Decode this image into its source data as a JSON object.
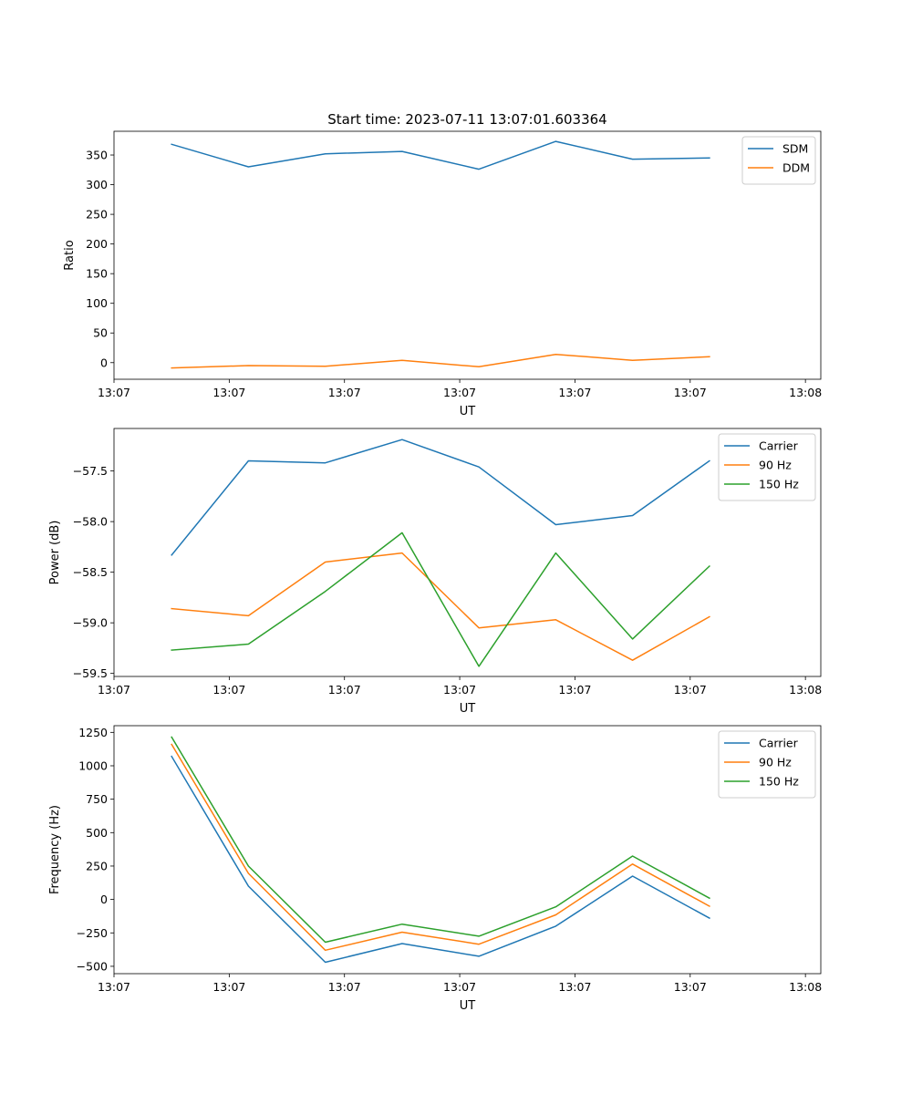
{
  "chart_data": [
    {
      "type": "line",
      "title": "Start time: 2023-07-11 13:07:01.603364",
      "xlabel": "UT",
      "ylabel": "Ratio",
      "xlim": [
        0,
        9.2
      ],
      "ylim": [
        -28,
        390
      ],
      "x": [
        0.75,
        1.75,
        2.75,
        3.75,
        4.75,
        5.75,
        6.75,
        7.75
      ],
      "xticks": [
        0,
        1.5,
        3,
        4.5,
        6,
        7.5,
        9
      ],
      "xtick_labels": [
        "13:07",
        "13:07",
        "13:07",
        "13:07",
        "13:07",
        "13:07",
        "13:08"
      ],
      "yticks": [
        0,
        50,
        100,
        150,
        200,
        250,
        300,
        350
      ],
      "ytick_labels": [
        "0",
        "50",
        "100",
        "150",
        "200",
        "250",
        "300",
        "350"
      ],
      "legend_position": "top-right",
      "series": [
        {
          "name": "SDM",
          "color": "#1f77b4",
          "values": [
            368,
            330,
            352,
            356,
            326,
            373,
            343,
            345
          ]
        },
        {
          "name": "DDM",
          "color": "#ff7f0e",
          "values": [
            -9,
            -5,
            -6,
            4,
            -7,
            14,
            4,
            10
          ]
        }
      ]
    },
    {
      "type": "line",
      "title": "",
      "xlabel": "UT",
      "ylabel": "Power (dB)",
      "xlim": [
        0,
        9.2
      ],
      "ylim": [
        -59.53,
        -57.08
      ],
      "x": [
        0.75,
        1.75,
        2.75,
        3.75,
        4.75,
        5.75,
        6.75,
        7.75
      ],
      "xticks": [
        0,
        1.5,
        3,
        4.5,
        6,
        7.5,
        9
      ],
      "xtick_labels": [
        "13:07",
        "13:07",
        "13:07",
        "13:07",
        "13:07",
        "13:07",
        "13:08"
      ],
      "yticks": [
        -59.5,
        -59.0,
        -58.5,
        -58.0,
        -57.5
      ],
      "ytick_labels": [
        "−59.5",
        "−59.0",
        "−58.5",
        "−58.0",
        "−57.5"
      ],
      "legend_position": "top-right",
      "series": [
        {
          "name": "Carrier",
          "color": "#1f77b4",
          "values": [
            -58.33,
            -57.4,
            -57.42,
            -57.19,
            -57.46,
            -58.03,
            -57.94,
            -57.4
          ]
        },
        {
          "name": "90 Hz",
          "color": "#ff7f0e",
          "values": [
            -58.86,
            -58.93,
            -58.4,
            -58.31,
            -59.05,
            -58.97,
            -59.37,
            -58.94
          ]
        },
        {
          "name": "150 Hz",
          "color": "#2ca02c",
          "values": [
            -59.27,
            -59.21,
            -58.69,
            -58.11,
            -59.43,
            -58.31,
            -59.16,
            -58.44
          ]
        }
      ]
    },
    {
      "type": "line",
      "title": "",
      "xlabel": "UT",
      "ylabel": "Frequency (Hz)",
      "xlim": [
        0,
        9.2
      ],
      "ylim": [
        -555,
        1300
      ],
      "x": [
        0.75,
        1.75,
        2.75,
        3.75,
        4.75,
        5.75,
        6.75,
        7.75
      ],
      "xticks": [
        0,
        1.5,
        3,
        4.5,
        6,
        7.5,
        9
      ],
      "xtick_labels": [
        "13:07",
        "13:07",
        "13:07",
        "13:07",
        "13:07",
        "13:07",
        "13:08"
      ],
      "yticks": [
        -500,
        -250,
        0,
        250,
        500,
        750,
        1000,
        1250
      ],
      "ytick_labels": [
        "−500",
        "−250",
        "0",
        "250",
        "500",
        "750",
        "1000",
        "1250"
      ],
      "legend_position": "top-right",
      "series": [
        {
          "name": "Carrier",
          "color": "#1f77b4",
          "values": [
            1070,
            100,
            -470,
            -330,
            -425,
            -200,
            175,
            -140
          ]
        },
        {
          "name": "90 Hz",
          "color": "#ff7f0e",
          "values": [
            1160,
            195,
            -380,
            -245,
            -335,
            -115,
            265,
            -50
          ]
        },
        {
          "name": "150 Hz",
          "color": "#2ca02c",
          "values": [
            1215,
            250,
            -320,
            -185,
            -275,
            -55,
            325,
            10
          ]
        }
      ]
    }
  ]
}
